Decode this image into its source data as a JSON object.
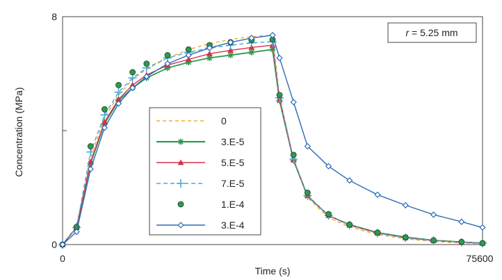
{
  "chart_data": {
    "type": "line",
    "title": "",
    "xlabel": "Time (s)",
    "ylabel": "Concentration (MPa)",
    "xlim": [
      0,
      75600
    ],
    "ylim": [
      0,
      8
    ],
    "x_tick_labels": [
      "0",
      "75600"
    ],
    "y_tick_labels": [
      "0",
      "8"
    ],
    "y_minor_tick_at": 4,
    "grid": false,
    "legend_position": "center-left",
    "annotation": {
      "symbol": "r",
      "text": " = 5.25 mm"
    },
    "x": [
      0,
      2520,
      5040,
      7560,
      10080,
      12600,
      15120,
      18900,
      22680,
      26460,
      30240,
      34020,
      37800,
      39060,
      41580,
      44100,
      47880,
      51660,
      56700,
      61740,
      66780,
      71820,
      75600
    ],
    "series": [
      {
        "name": "0",
        "color": "#f0a830",
        "dash": "5,4",
        "marker": "none",
        "values": [
          0,
          0.65,
          3.05,
          4.45,
          5.25,
          5.8,
          6.15,
          6.55,
          6.85,
          7.05,
          7.2,
          7.3,
          7.35,
          5.2,
          3.0,
          1.65,
          0.95,
          0.62,
          0.35,
          0.2,
          0.11,
          0.06,
          0.03
        ]
      },
      {
        "name": "3.E-5",
        "color": "#2e9a4c",
        "dash": "",
        "marker": "star",
        "values": [
          0,
          0.6,
          2.85,
          4.25,
          5.05,
          5.5,
          5.85,
          6.2,
          6.4,
          6.55,
          6.65,
          6.75,
          6.85,
          5.05,
          2.95,
          1.7,
          1.02,
          0.7,
          0.42,
          0.26,
          0.15,
          0.09,
          0.05
        ]
      },
      {
        "name": "5.E-5",
        "color": "#d8304a",
        "dash": "",
        "marker": "triangle",
        "values": [
          0,
          0.6,
          2.9,
          4.3,
          5.1,
          5.6,
          5.95,
          6.3,
          6.5,
          6.7,
          6.82,
          6.92,
          7.0,
          5.1,
          2.98,
          1.72,
          1.02,
          0.68,
          0.4,
          0.24,
          0.14,
          0.08,
          0.05
        ]
      },
      {
        "name": "7.E-5",
        "color": "#48a8d8",
        "dash": "6,4",
        "marker": "plus",
        "values": [
          0,
          0.6,
          3.25,
          4.55,
          5.35,
          5.85,
          6.2,
          6.55,
          6.75,
          6.9,
          7.0,
          7.08,
          7.12,
          5.15,
          3.0,
          1.72,
          1.02,
          0.68,
          0.4,
          0.24,
          0.14,
          0.08,
          0.05
        ]
      },
      {
        "name": "1.E-4",
        "color": "#2e9a4c",
        "dash": "none",
        "marker": "dot",
        "values": [
          0,
          0.62,
          3.45,
          4.75,
          5.6,
          6.05,
          6.35,
          6.65,
          6.85,
          7.0,
          7.1,
          7.18,
          7.2,
          5.25,
          3.15,
          1.82,
          1.07,
          0.7,
          0.42,
          0.25,
          0.15,
          0.09,
          0.05
        ]
      },
      {
        "name": "3.E-4",
        "color": "#2a6cb8",
        "dash": "",
        "marker": "diamond",
        "values": [
          0,
          0.45,
          2.65,
          4.1,
          4.95,
          5.5,
          5.9,
          6.35,
          6.65,
          6.9,
          7.1,
          7.25,
          7.35,
          6.55,
          5.0,
          3.45,
          2.75,
          2.25,
          1.75,
          1.38,
          1.05,
          0.8,
          0.6
        ]
      }
    ]
  }
}
